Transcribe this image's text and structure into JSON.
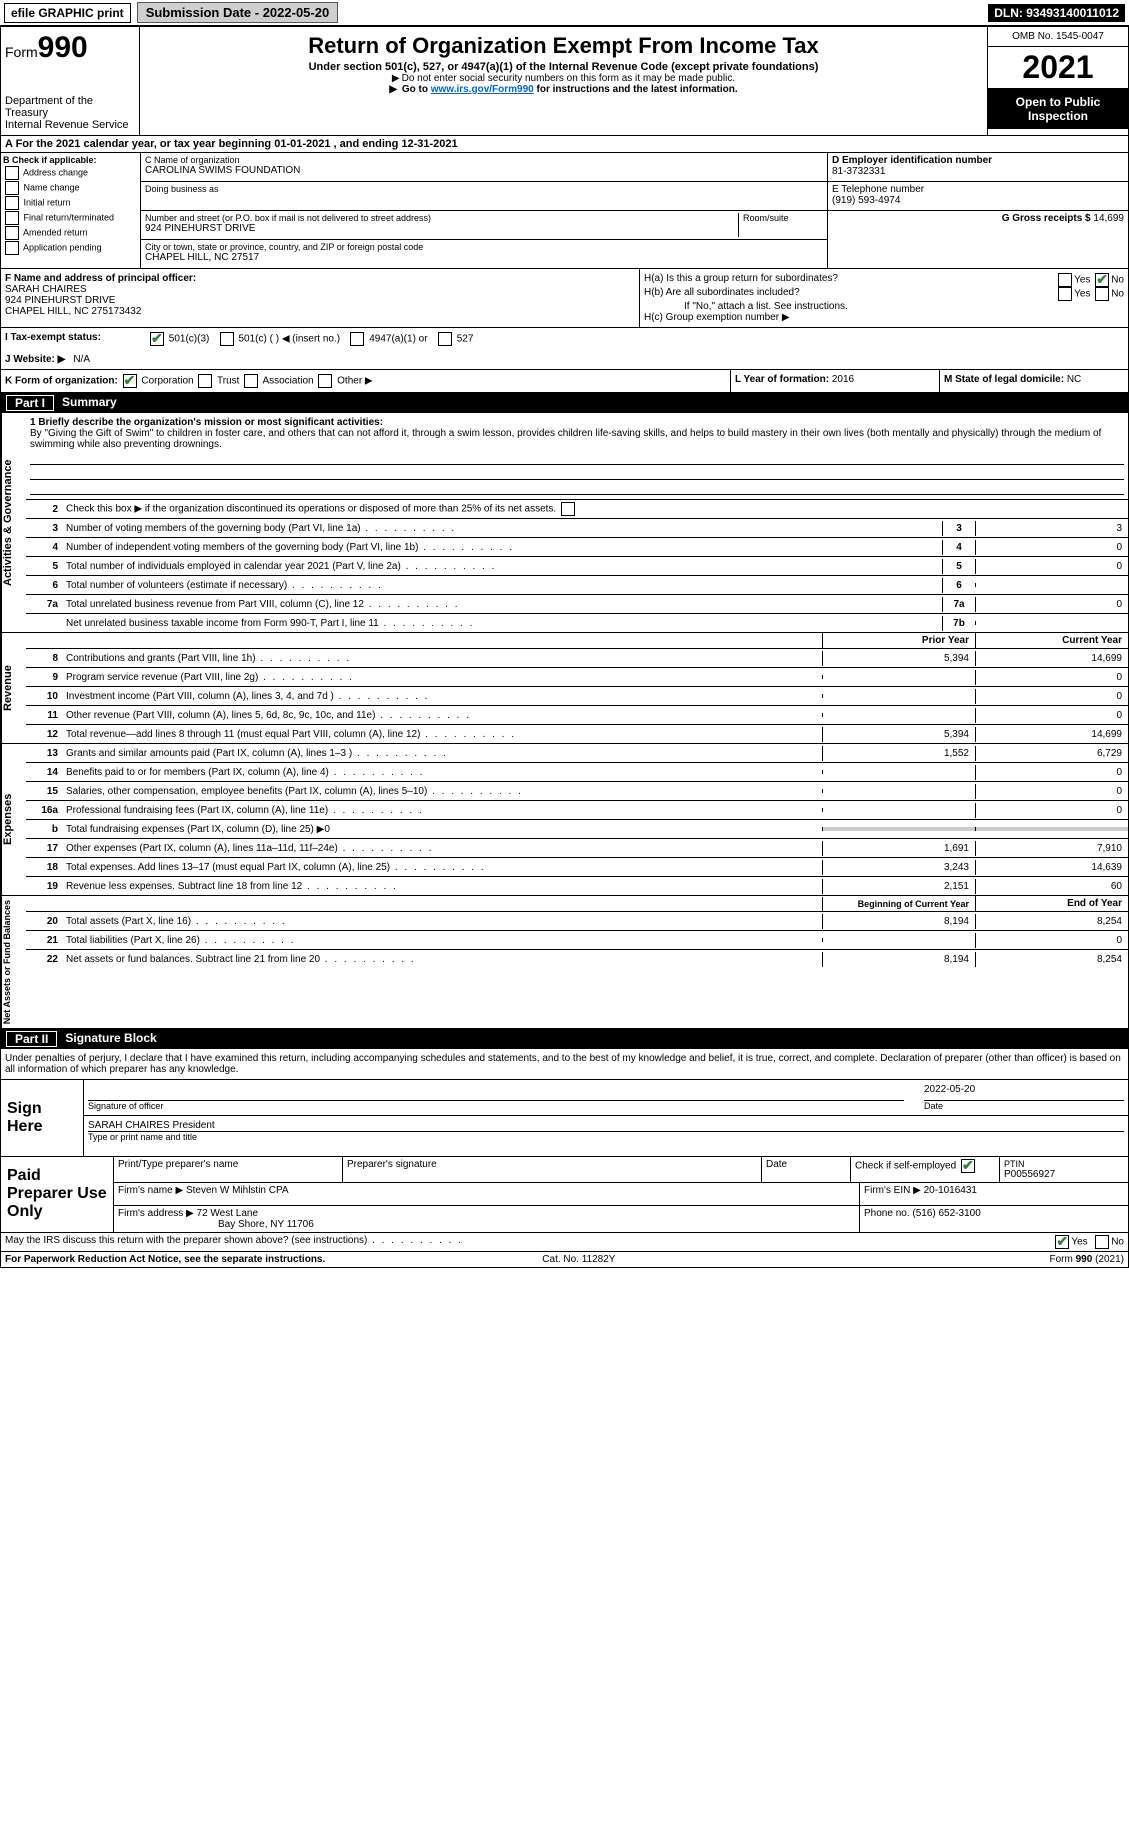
{
  "topbar": {
    "efile_label": "efile GRAPHIC print",
    "submission_label": "Submission Date - 2022-05-20",
    "dln": "DLN: 93493140011012"
  },
  "header": {
    "form_label": "Form",
    "form_number": "990",
    "dept_treasury": "Department of the Treasury",
    "irs": "Internal Revenue Service",
    "title": "Return of Organization Exempt From Income Tax",
    "subtitle": "Under section 501(c), 527, or 4947(a)(1) of the Internal Revenue Code (except private foundations)",
    "ssn_note": "Do not enter social security numbers on this form as it may be made public.",
    "goto_prefix": "Go to ",
    "goto_link": "www.irs.gov/Form990",
    "goto_suffix": " for instructions and the latest information.",
    "omb": "OMB No. 1545-0047",
    "year": "2021",
    "open_inspection": "Open to Public Inspection"
  },
  "period": {
    "label_a": "A For the 2021 calendar year, or tax year beginning ",
    "begin": "01-01-2021",
    "mid": " , and ending ",
    "end": "12-31-2021"
  },
  "box_b": {
    "label": "B Check if applicable:",
    "items": [
      "Address change",
      "Name change",
      "Initial return",
      "Final return/terminated",
      "Amended return",
      "Application pending"
    ]
  },
  "box_c": {
    "c_label": "C Name of organization",
    "org_name": "CAROLINA SWIMS FOUNDATION",
    "dba_label": "Doing business as",
    "street_label": "Number and street (or P.O. box if mail is not delivered to street address)",
    "room_label": "Room/suite",
    "street": "924 PINEHURST DRIVE",
    "city_label": "City or town, state or province, country, and ZIP or foreign postal code",
    "city": "CHAPEL HILL, NC  27517"
  },
  "box_d": {
    "label": "D Employer identification number",
    "ein": "81-3732331"
  },
  "box_e": {
    "label": "E Telephone number",
    "phone": "(919) 593-4974"
  },
  "box_g": {
    "label": "G Gross receipts $ ",
    "amount": "14,699"
  },
  "box_f": {
    "label": "F  Name and address of principal officer:",
    "name": "SARAH CHAIRES",
    "street": "924 PINEHURST DRIVE",
    "city": "CHAPEL HILL, NC  275173432"
  },
  "box_h": {
    "ha_label": "H(a)  Is this a group return for subordinates?",
    "hb_label": "H(b)  Are all subordinates included?",
    "hb_note": "If \"No,\" attach a list. See instructions.",
    "hc_label": "H(c)  Group exemption number ▶",
    "yes": "Yes",
    "no": "No"
  },
  "box_i": {
    "label": "I  Tax-exempt status:",
    "opt1": "501(c)(3)",
    "opt2": "501(c) (   ) ◀ (insert no.)",
    "opt3": "4947(a)(1) or",
    "opt4": "527"
  },
  "box_j": {
    "label": "J  Website: ▶",
    "value": "N/A"
  },
  "box_k": {
    "label": "K Form of organization:",
    "opts": [
      "Corporation",
      "Trust",
      "Association",
      "Other ▶"
    ]
  },
  "box_l": {
    "label": "L Year of formation: ",
    "year": "2016",
    "m_label": "M State of legal domicile: ",
    "state": "NC"
  },
  "part1": {
    "header_num": "Part I",
    "header_title": "Summary",
    "side_gov": "Activities & Governance",
    "side_rev": "Revenue",
    "side_exp": "Expenses",
    "side_net": "Net Assets or Fund Balances",
    "line1_label": "1  Briefly describe the organization's mission or most significant activities:",
    "mission_text": "By \"Giving the Gift of Swim\" to children in foster care, and others that can not afford it, through a swim lesson, provides children life-saving skills, and helps to build mastery in their own lives (both mentally and physically) through the medium of swimming while also preventing drownings.",
    "line2_label": "Check this box ▶      if the organization discontinued its operations or disposed of more than 25% of its net assets.",
    "lines_gov": [
      {
        "n": "3",
        "d": "Number of voting members of the governing body (Part VI, line 1a)",
        "box": "3",
        "v": "3"
      },
      {
        "n": "4",
        "d": "Number of independent voting members of the governing body (Part VI, line 1b)",
        "box": "4",
        "v": "0"
      },
      {
        "n": "5",
        "d": "Total number of individuals employed in calendar year 2021 (Part V, line 2a)",
        "box": "5",
        "v": "0"
      },
      {
        "n": "6",
        "d": "Total number of volunteers (estimate if necessary)",
        "box": "6",
        "v": ""
      },
      {
        "n": "7a",
        "d": "Total unrelated business revenue from Part VIII, column (C), line 12",
        "box": "7a",
        "v": "0"
      },
      {
        "n": "",
        "d": "Net unrelated business taxable income from Form 990-T, Part I, line 11",
        "box": "7b",
        "v": ""
      }
    ],
    "col_prior": "Prior Year",
    "col_current": "Current Year",
    "lines_rev": [
      {
        "n": "8",
        "d": "Contributions and grants (Part VIII, line 1h)",
        "p": "5,394",
        "c": "14,699"
      },
      {
        "n": "9",
        "d": "Program service revenue (Part VIII, line 2g)",
        "p": "",
        "c": "0"
      },
      {
        "n": "10",
        "d": "Investment income (Part VIII, column (A), lines 3, 4, and 7d )",
        "p": "",
        "c": "0"
      },
      {
        "n": "11",
        "d": "Other revenue (Part VIII, column (A), lines 5, 6d, 8c, 9c, 10c, and 11e)",
        "p": "",
        "c": "0"
      },
      {
        "n": "12",
        "d": "Total revenue—add lines 8 through 11 (must equal Part VIII, column (A), line 12)",
        "p": "5,394",
        "c": "14,699"
      }
    ],
    "lines_exp": [
      {
        "n": "13",
        "d": "Grants and similar amounts paid (Part IX, column (A), lines 1–3 )",
        "p": "1,552",
        "c": "6,729"
      },
      {
        "n": "14",
        "d": "Benefits paid to or for members (Part IX, column (A), line 4)",
        "p": "",
        "c": "0"
      },
      {
        "n": "15",
        "d": "Salaries, other compensation, employee benefits (Part IX, column (A), lines 5–10)",
        "p": "",
        "c": "0"
      },
      {
        "n": "16a",
        "d": "Professional fundraising fees (Part IX, column (A), line 11e)",
        "p": "",
        "c": "0"
      },
      {
        "n": "b",
        "d": "Total fundraising expenses (Part IX, column (D), line 25) ▶0",
        "p": null,
        "c": null
      },
      {
        "n": "17",
        "d": "Other expenses (Part IX, column (A), lines 11a–11d, 11f–24e)",
        "p": "1,691",
        "c": "7,910"
      },
      {
        "n": "18",
        "d": "Total expenses. Add lines 13–17 (must equal Part IX, column (A), line 25)",
        "p": "3,243",
        "c": "14,639"
      },
      {
        "n": "19",
        "d": "Revenue less expenses. Subtract line 18 from line 12",
        "p": "2,151",
        "c": "60"
      }
    ],
    "col_begin": "Beginning of Current Year",
    "col_end": "End of Year",
    "lines_net": [
      {
        "n": "20",
        "d": "Total assets (Part X, line 16)",
        "p": "8,194",
        "c": "8,254"
      },
      {
        "n": "21",
        "d": "Total liabilities (Part X, line 26)",
        "p": "",
        "c": "0"
      },
      {
        "n": "22",
        "d": "Net assets or fund balances. Subtract line 21 from line 20",
        "p": "8,194",
        "c": "8,254"
      }
    ]
  },
  "part2": {
    "header_num": "Part II",
    "header_title": "Signature Block",
    "penalty_text": "Under penalties of perjury, I declare that I have examined this return, including accompanying schedules and statements, and to the best of my knowledge and belief, it is true, correct, and complete. Declaration of preparer (other than officer) is based on all information of which preparer has any knowledge.",
    "sign_here": "Sign Here",
    "sig_officer": "Signature of officer",
    "date_label": "Date",
    "sig_date": "2022-05-20",
    "officer_name": "SARAH CHAIRES President",
    "type_name": "Type or print name and title",
    "paid_label": "Paid Preparer Use Only",
    "print_prep": "Print/Type preparer's name",
    "prep_sig": "Preparer's signature",
    "check_self": "Check        if self-employed",
    "ptin_label": "PTIN",
    "ptin": "P00556927",
    "firm_name_label": "Firm's name    ▶",
    "firm_name": "Steven W Mihlstin CPA",
    "firm_ein_label": "Firm's EIN ▶",
    "firm_ein": "20-1016431",
    "firm_addr_label": "Firm's address ▶",
    "firm_addr1": "72 West Lane",
    "firm_addr2": "Bay Shore, NY  11706",
    "phone_label": "Phone no. ",
    "phone": "(516) 652-3100",
    "discuss": "May the IRS discuss this return with the preparer shown above? (see instructions)",
    "yes": "Yes",
    "no": "No"
  },
  "footer": {
    "left": "For Paperwork Reduction Act Notice, see the separate instructions.",
    "center": "Cat. No. 11282Y",
    "right": "Form 990 (2021)"
  },
  "colors": {
    "green_check": "#3b7d3b",
    "link_blue": "#0066cc",
    "gray_btn": "#cfcfcf"
  }
}
